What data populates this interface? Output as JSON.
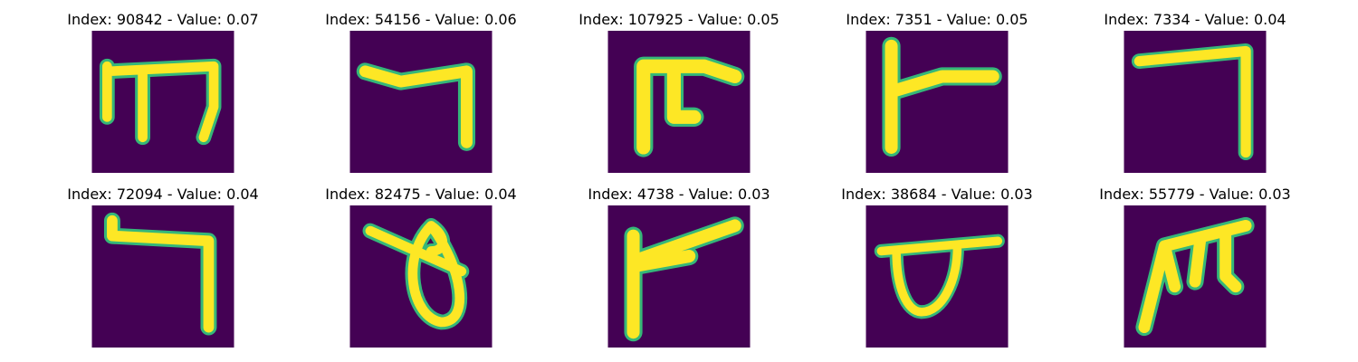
{
  "colors": {
    "background": "#440154",
    "foreground": "#fde725",
    "edge": "#35b779"
  },
  "panels": [
    {
      "title": "Index: 90842 - Value: 0.07",
      "glyph": "m-glyph"
    },
    {
      "title": "Index: 54156 - Value: 0.06",
      "glyph": "seven-hook-glyph"
    },
    {
      "title": "Index: 107925 - Value: 0.05",
      "glyph": "table-glyph"
    },
    {
      "title": "Index: 7351 - Value: 0.05",
      "glyph": "flag-glyph"
    },
    {
      "title": "Index: 7334 - Value: 0.04",
      "glyph": "seven-glyph"
    },
    {
      "title": "Index: 72094 - Value: 0.04",
      "glyph": "hook-glyph"
    },
    {
      "title": "Index: 82475 - Value: 0.04",
      "glyph": "loop-glyph"
    },
    {
      "title": "Index: 4738 - Value: 0.03",
      "glyph": "flag-glyph-2"
    },
    {
      "title": "Index: 38684 - Value: 0.03",
      "glyph": "cup-glyph"
    },
    {
      "title": "Index: 55779 - Value: 0.03",
      "glyph": "m-glyph-2"
    }
  ]
}
